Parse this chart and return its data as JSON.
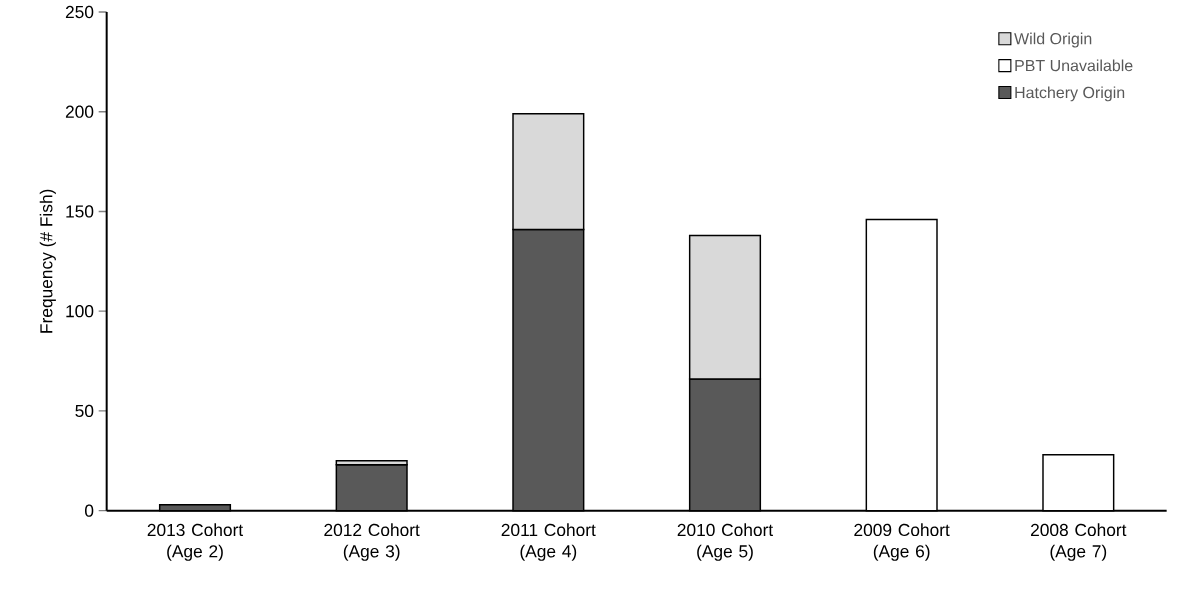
{
  "chart_data": {
    "type": "bar",
    "stacked": true,
    "ylabel": "Frequency (# Fish)",
    "categories": [
      "2013 Cohort (Age 2)",
      "2012 Cohort (Age 3)",
      "2011 Cohort (Age 4)",
      "2010 Cohort (Age 5)",
      "2009 Cohort (Age 6)",
      "2008 Cohort (Age 7)"
    ],
    "series": [
      {
        "name": "Hatchery Origin",
        "color": "#595959",
        "values": [
          3,
          23,
          141,
          66,
          null,
          null
        ]
      },
      {
        "name": "PBT Unavailable",
        "color": "#ffffff",
        "values": [
          null,
          null,
          null,
          null,
          146,
          28
        ]
      },
      {
        "name": "Wild Origin",
        "color": "#d9d9d9",
        "values": [
          null,
          2,
          58,
          72,
          null,
          null
        ]
      }
    ],
    "ylim": [
      0,
      250
    ],
    "yticks": [
      0,
      50,
      100,
      150,
      200,
      250
    ],
    "legend": "top right",
    "grid": false
  }
}
